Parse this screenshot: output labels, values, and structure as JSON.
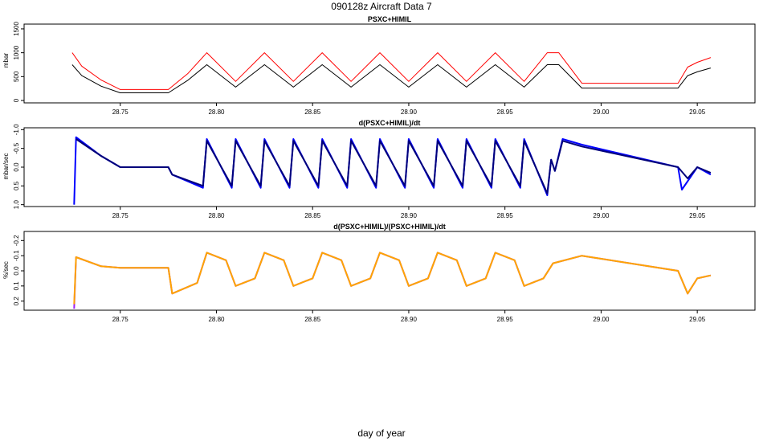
{
  "figure": {
    "title": "090128z   Aircraft Data 7",
    "xlabel": "day of year"
  },
  "colors": {
    "red": "#ff0000",
    "dark": "#000000",
    "blue": "#0000ff",
    "navy": "#00007a",
    "purple": "#a020f0",
    "orange": "#ffa500"
  },
  "chart_data": [
    {
      "type": "line",
      "title": "PSXC+HIMIL",
      "ylabel": "mbar",
      "xlim": [
        28.7,
        29.08
      ],
      "ylim": [
        -50,
        1600
      ],
      "y_inverted": false,
      "x_ticks": [
        28.75,
        28.8,
        28.85,
        28.9,
        28.95,
        29.0,
        29.05
      ],
      "x_tick_labels": [
        "28.75",
        "28.80",
        "28.85",
        "28.90",
        "28.95",
        "29.00",
        "29.05"
      ],
      "y_ticks": [
        0,
        500,
        1000,
        1500
      ],
      "y_tick_labels": [
        "0",
        "500",
        "1000",
        "1500"
      ],
      "series": [
        {
          "name": "red",
          "color": "red",
          "x": [
            28.725,
            28.73,
            28.74,
            28.75,
            28.775,
            28.785,
            28.795,
            28.81,
            28.825,
            28.84,
            28.855,
            28.87,
            28.885,
            28.9,
            28.915,
            28.93,
            28.945,
            28.96,
            28.972,
            28.978,
            28.99,
            29.04,
            29.045,
            29.05,
            29.057
          ],
          "y": [
            1000,
            720,
            430,
            230,
            230,
            560,
            1000,
            400,
            1000,
            400,
            1000,
            400,
            1000,
            400,
            1000,
            400,
            1000,
            400,
            1000,
            1000,
            360,
            360,
            700,
            800,
            900
          ]
        },
        {
          "name": "dark",
          "color": "dark",
          "x": [
            28.725,
            28.73,
            28.74,
            28.75,
            28.775,
            28.785,
            28.795,
            28.81,
            28.825,
            28.84,
            28.855,
            28.87,
            28.885,
            28.9,
            28.915,
            28.93,
            28.945,
            28.96,
            28.972,
            28.978,
            28.99,
            29.04,
            29.045,
            29.05,
            29.057
          ],
          "y": [
            750,
            520,
            300,
            160,
            160,
            420,
            750,
            280,
            750,
            280,
            750,
            280,
            750,
            280,
            750,
            280,
            750,
            280,
            750,
            750,
            260,
            260,
            520,
            600,
            680
          ]
        }
      ]
    },
    {
      "type": "line",
      "title": "d(PSXC+HIMIL)/dt",
      "ylabel": "mbar/sec",
      "xlim": [
        28.7,
        29.08
      ],
      "ylim": [
        -1.05,
        1.05
      ],
      "y_inverted": true,
      "x_ticks": [
        28.75,
        28.8,
        28.85,
        28.9,
        28.95,
        29.0,
        29.05
      ],
      "x_tick_labels": [
        "28.75",
        "28.80",
        "28.85",
        "28.90",
        "28.95",
        "29.00",
        "29.05"
      ],
      "y_ticks": [
        -1.0,
        -0.5,
        0.0,
        0.5,
        1.0
      ],
      "y_tick_labels": [
        "-1.0",
        "-0.5",
        "0.0",
        "0.5",
        "1.0"
      ],
      "series": [
        {
          "name": "blue",
          "color": "blue",
          "x": [
            28.726,
            28.727,
            28.74,
            28.75,
            28.775,
            28.777,
            28.793,
            28.795,
            28.808,
            28.81,
            28.823,
            28.825,
            28.838,
            28.84,
            28.853,
            28.855,
            28.868,
            28.87,
            28.883,
            28.885,
            28.898,
            28.9,
            28.913,
            28.915,
            28.928,
            28.93,
            28.943,
            28.945,
            28.958,
            28.96,
            28.972,
            28.974,
            28.976,
            28.98,
            28.99,
            29.04,
            29.042,
            29.05,
            29.057
          ],
          "y": [
            1.0,
            -0.8,
            -0.3,
            0.0,
            0.0,
            0.2,
            0.55,
            -0.75,
            0.55,
            -0.75,
            0.55,
            -0.75,
            0.55,
            -0.75,
            0.55,
            -0.75,
            0.55,
            -0.75,
            0.55,
            -0.75,
            0.55,
            -0.75,
            0.55,
            -0.75,
            0.55,
            -0.75,
            0.55,
            -0.75,
            0.55,
            -0.75,
            0.75,
            -0.2,
            0.1,
            -0.75,
            -0.6,
            0.0,
            0.6,
            0.0,
            0.2
          ]
        },
        {
          "name": "navy",
          "color": "navy",
          "x": [
            28.727,
            28.74,
            28.75,
            28.775,
            28.777,
            28.793,
            28.795,
            28.808,
            28.81,
            28.823,
            28.825,
            28.838,
            28.84,
            28.853,
            28.855,
            28.868,
            28.87,
            28.883,
            28.885,
            28.898,
            28.9,
            28.913,
            28.915,
            28.928,
            28.93,
            28.943,
            28.945,
            28.958,
            28.96,
            28.972,
            28.974,
            28.976,
            28.98,
            28.99,
            29.04,
            29.045,
            29.05,
            29.057
          ],
          "y": [
            -0.75,
            -0.3,
            0.0,
            0.0,
            0.2,
            0.5,
            -0.7,
            0.5,
            -0.7,
            0.5,
            -0.7,
            0.5,
            -0.7,
            0.5,
            -0.7,
            0.5,
            -0.7,
            0.5,
            -0.7,
            0.5,
            -0.7,
            0.5,
            -0.7,
            0.5,
            -0.7,
            0.5,
            -0.7,
            0.5,
            -0.7,
            0.7,
            -0.2,
            0.1,
            -0.7,
            -0.55,
            0.0,
            0.3,
            0.0,
            0.15
          ]
        }
      ]
    },
    {
      "type": "line",
      "title": "d(PSXC+HIMIL)/(PSXC+HIMIL)/dt",
      "ylabel": "%/sec",
      "xlim": [
        28.7,
        29.08
      ],
      "ylim": [
        -0.26,
        0.26
      ],
      "y_inverted": true,
      "x_ticks": [
        28.75,
        28.8,
        28.85,
        28.9,
        28.95,
        29.0,
        29.05
      ],
      "x_tick_labels": [
        "28.75",
        "28.80",
        "28.85",
        "28.90",
        "28.95",
        "29.00",
        "29.05"
      ],
      "y_ticks": [
        -0.2,
        -0.1,
        0.0,
        0.1,
        0.2
      ],
      "y_tick_labels": [
        "-0.2",
        "-0.1",
        "0.0",
        "0.1",
        "0.2"
      ],
      "series": [
        {
          "name": "purple",
          "color": "purple",
          "x": [
            28.726,
            28.727,
            28.74,
            28.75,
            28.775,
            28.777,
            28.79,
            28.795,
            28.805,
            28.81,
            28.82,
            28.825,
            28.835,
            28.84,
            28.85,
            28.855,
            28.865,
            28.87,
            28.88,
            28.885,
            28.895,
            28.9,
            28.91,
            28.915,
            28.925,
            28.93,
            28.94,
            28.945,
            28.955,
            28.96,
            28.97,
            28.975,
            28.99,
            29.04,
            29.045,
            29.05,
            29.057
          ],
          "y": [
            0.25,
            -0.09,
            -0.03,
            -0.02,
            -0.02,
            0.15,
            0.08,
            -0.12,
            -0.07,
            0.1,
            0.05,
            -0.12,
            -0.07,
            0.1,
            0.05,
            -0.12,
            -0.07,
            0.1,
            0.05,
            -0.12,
            -0.07,
            0.1,
            0.05,
            -0.12,
            -0.07,
            0.1,
            0.05,
            -0.12,
            -0.07,
            0.1,
            0.05,
            -0.05,
            -0.1,
            0.0,
            0.15,
            0.05,
            0.03
          ]
        },
        {
          "name": "orange",
          "color": "orange",
          "x": [
            28.726,
            28.727,
            28.74,
            28.75,
            28.775,
            28.777,
            28.79,
            28.795,
            28.805,
            28.81,
            28.82,
            28.825,
            28.835,
            28.84,
            28.85,
            28.855,
            28.865,
            28.87,
            28.88,
            28.885,
            28.895,
            28.9,
            28.91,
            28.915,
            28.925,
            28.93,
            28.94,
            28.945,
            28.955,
            28.96,
            28.97,
            28.975,
            28.99,
            29.04,
            29.045,
            29.05,
            29.057
          ],
          "y": [
            0.22,
            -0.09,
            -0.03,
            -0.02,
            -0.02,
            0.15,
            0.08,
            -0.12,
            -0.07,
            0.1,
            0.05,
            -0.12,
            -0.07,
            0.1,
            0.05,
            -0.12,
            -0.07,
            0.1,
            0.05,
            -0.12,
            -0.07,
            0.1,
            0.05,
            -0.12,
            -0.07,
            0.1,
            0.05,
            -0.12,
            -0.07,
            0.1,
            0.05,
            -0.05,
            -0.1,
            0.0,
            0.15,
            0.05,
            0.03
          ]
        }
      ]
    }
  ]
}
